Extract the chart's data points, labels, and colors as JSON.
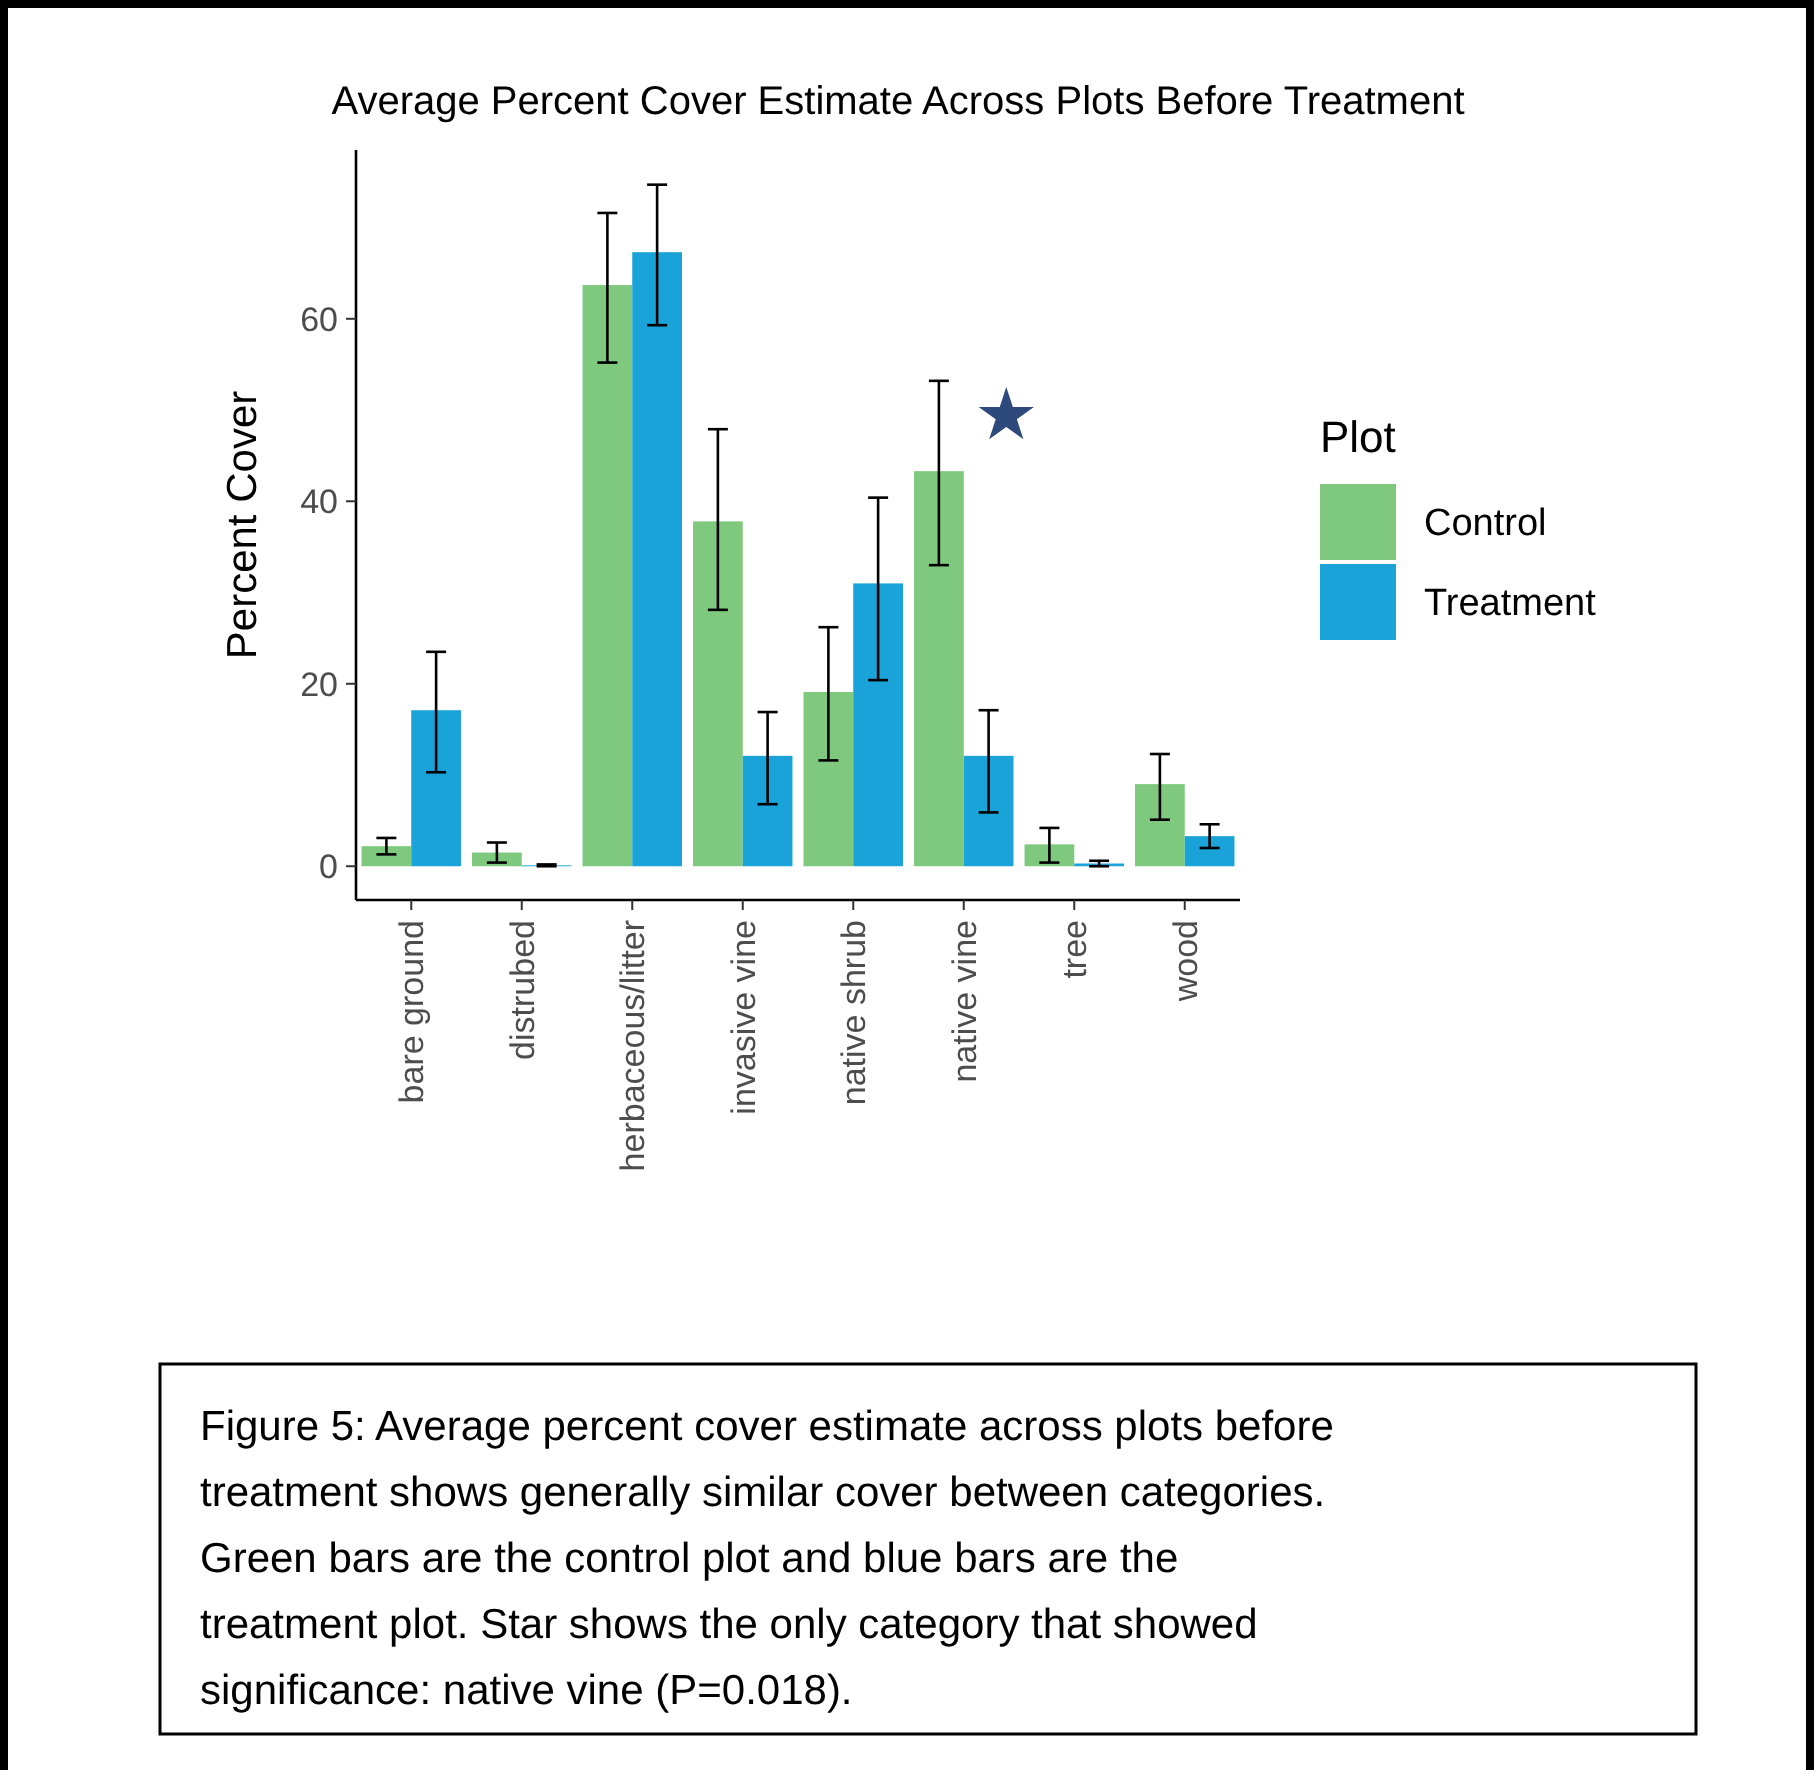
{
  "chart_data": {
    "type": "bar",
    "title": "Average Percent Cover Estimate Across Plots Before Treatment",
    "ylabel": "Percent Cover",
    "legend_title": "Plot",
    "legend": "right",
    "categories": [
      "bare ground",
      "distrubed",
      "herbaceous/litter",
      "invasive vine",
      "native shrub",
      "native vine",
      "tree",
      "wood"
    ],
    "series": [
      {
        "name": "Control",
        "color": "#7fc97f",
        "values": [
          2.2,
          1.5,
          63.7,
          37.8,
          19.1,
          43.3,
          2.4,
          9.0
        ],
        "errors": [
          [
            1.3,
            3.1
          ],
          [
            0.4,
            2.6
          ],
          [
            55.2,
            71.6
          ],
          [
            28.1,
            47.9
          ],
          [
            11.6,
            26.2
          ],
          [
            33.0,
            53.2
          ],
          [
            0.4,
            4.2
          ],
          [
            5.1,
            12.3
          ]
        ]
      },
      {
        "name": "Treatment",
        "color": "#1aa3d9",
        "values": [
          17.1,
          0.1,
          67.3,
          12.1,
          31.0,
          12.1,
          0.3,
          3.3
        ],
        "errors": [
          [
            10.3,
            23.5
          ],
          [
            0,
            0.2
          ],
          [
            59.3,
            74.7
          ],
          [
            6.8,
            16.9
          ],
          [
            20.4,
            40.4
          ],
          [
            5.9,
            17.1
          ],
          [
            0,
            0.6
          ],
          [
            2.0,
            4.6
          ]
        ]
      }
    ],
    "ylim": [
      -3.7,
      78.5
    ],
    "yticks": [
      0,
      20,
      40,
      60
    ],
    "grid": false,
    "annotations": [
      "★",
      "Figure 5: Average percent cover estimate across plots before treatment shows generally similar cover between categories. Green bars are the control plot and blue bars are the treatment plot. Star shows the only category that showed significance: native vine (P=0.018)."
    ]
  }
}
